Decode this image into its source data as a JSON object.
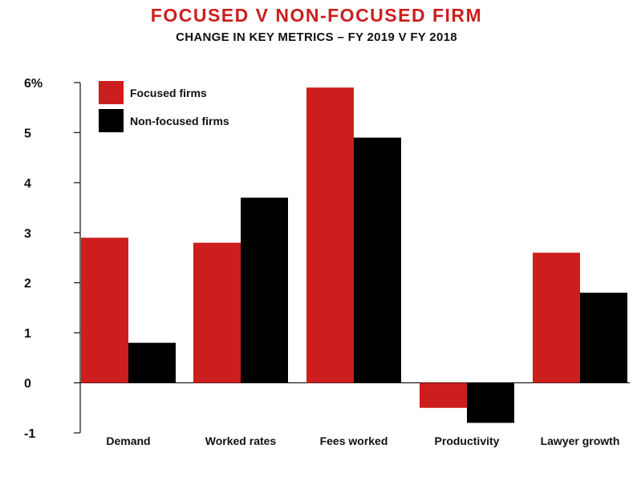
{
  "chart_data": {
    "type": "bar",
    "title": "FOCUSED V NON-FOCUSED FIRM",
    "subtitle": "CHANGE IN KEY METRICS – FY 2019 V FY 2018",
    "categories": [
      "Demand",
      "Worked rates",
      "Fees worked",
      "Productivity",
      "Lawyer growth"
    ],
    "series": [
      {
        "name": "Focused firms",
        "color": "#cc1e1e",
        "values": [
          2.9,
          2.8,
          5.9,
          -0.5,
          2.6
        ]
      },
      {
        "name": "Non-focused firms",
        "color": "#000000",
        "values": [
          0.8,
          3.7,
          4.9,
          -0.8,
          1.8
        ]
      }
    ],
    "ylim": [
      -1,
      6
    ],
    "yticks": [
      {
        "value": 6,
        "label": "6%"
      },
      {
        "value": 5,
        "label": "5"
      },
      {
        "value": 4,
        "label": "4"
      },
      {
        "value": 3,
        "label": "3"
      },
      {
        "value": 2,
        "label": "2"
      },
      {
        "value": 1,
        "label": "1"
      },
      {
        "value": 0,
        "label": "0"
      },
      {
        "value": -1,
        "label": "-1"
      }
    ],
    "grid": false,
    "legend_position": "top-left"
  }
}
